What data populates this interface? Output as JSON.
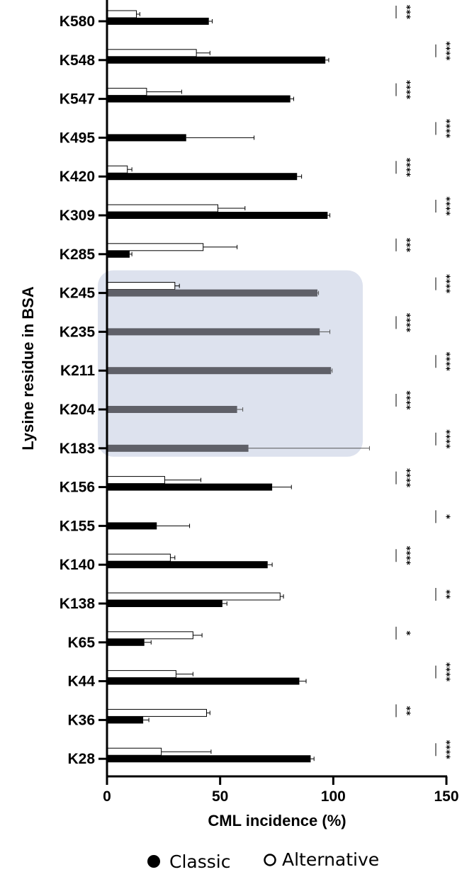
{
  "chart_data": {
    "type": "bar",
    "orientation": "horizontal",
    "xlabel": "CML incidence (%)",
    "ylabel": "Lysine residue in BSA",
    "xlim": [
      0,
      150
    ],
    "xticks": [
      "0",
      "50",
      "100",
      "150"
    ],
    "legend": {
      "position": "bottom",
      "items": [
        "Classic",
        "Alternative"
      ]
    },
    "highlight": {
      "categories": [
        "K245",
        "K235",
        "K211",
        "K204",
        "K183"
      ],
      "color": "#dde2ee"
    },
    "categories": [
      "K580",
      "K548",
      "K547",
      "K495",
      "K420",
      "K309",
      "K285",
      "K245",
      "K235",
      "K211",
      "K204",
      "K183",
      "K156",
      "K155",
      "K140",
      "K138",
      "K65",
      "K44",
      "K36",
      "K28"
    ],
    "series": [
      {
        "name": "Classic",
        "fill": "#000000",
        "values": [
          45,
          96.5,
          81,
          35,
          84,
          97.5,
          10,
          93,
          94,
          99,
          57.5,
          62.5,
          73,
          22,
          71,
          51,
          16.5,
          85,
          16,
          90
        ],
        "errors": [
          1.5,
          1.5,
          1.5,
          30,
          2,
          1,
          1,
          0.5,
          4.5,
          0.5,
          2.5,
          53.5,
          8.5,
          14.5,
          2,
          2,
          3,
          3,
          2.5,
          1.5
        ]
      },
      {
        "name": "Alternative",
        "fill": "#ffffff",
        "values": [
          13,
          39.5,
          17.5,
          0,
          9,
          49,
          42.5,
          30,
          0,
          0,
          0,
          0,
          25.5,
          0,
          28,
          76.5,
          38,
          30.5,
          44,
          24
        ],
        "errors": [
          1.5,
          6,
          15.5,
          0,
          2,
          12,
          15,
          2,
          0,
          0,
          0,
          0,
          16,
          0,
          2,
          1.5,
          4,
          7.5,
          1.5,
          22
        ]
      }
    ],
    "significance": [
      "***",
      "****",
      "****",
      "****",
      "****",
      "****",
      "***",
      "****",
      "****",
      "****",
      "****",
      "****",
      "****",
      "*",
      "****",
      "**",
      "*",
      "****",
      "**",
      "****"
    ]
  }
}
